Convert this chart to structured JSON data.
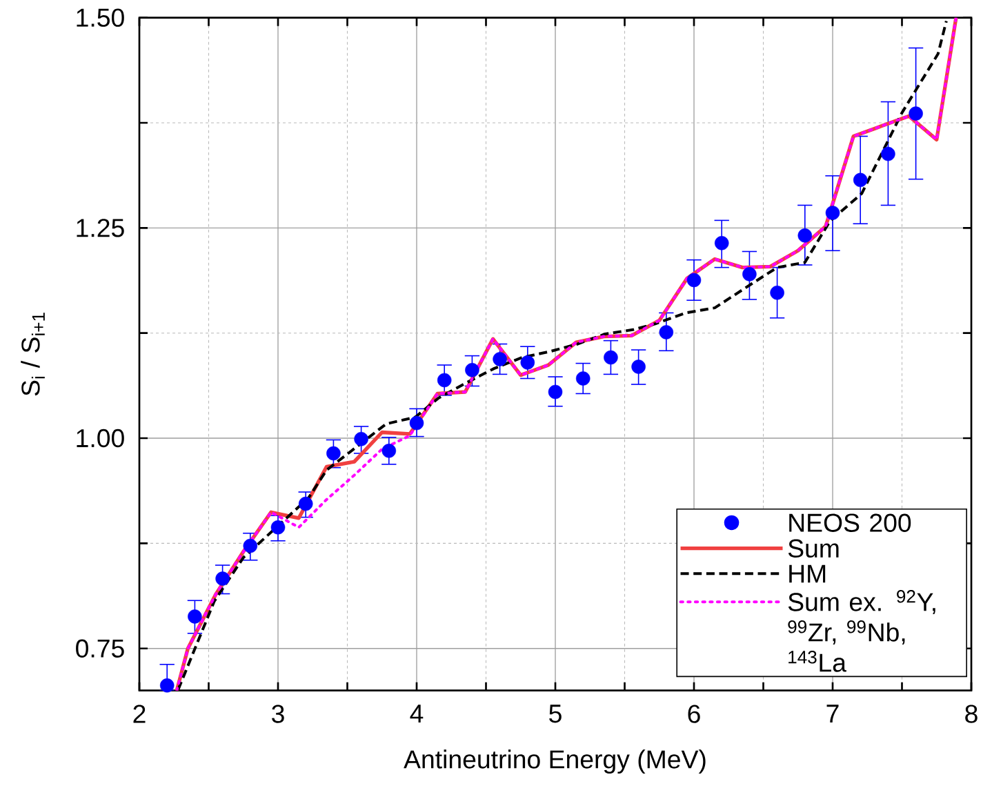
{
  "chart_data": {
    "type": "scatter",
    "xlabel": "Antineutrino Energy (MeV)",
    "ylabel": "S$_{i}$ / S$_{i+1}$",
    "xlim": [
      2,
      8
    ],
    "ylim": [
      0.7,
      1.5
    ],
    "xticks": [
      2,
      {
        "value": 2.5,
        "label": null
      },
      3,
      {
        "value": 3.5,
        "label": null
      },
      4,
      {
        "value": 4.5,
        "label": null
      },
      5,
      {
        "value": 5.5,
        "label": null
      },
      6,
      {
        "value": 6.5,
        "label": null
      },
      7,
      {
        "value": 7.5,
        "label": null
      },
      8
    ],
    "yticks": [
      0.75,
      {
        "value": 0.875,
        "label": null
      },
      {
        "value": 1,
        "label": "1.00"
      },
      {
        "value": 1.125,
        "label": null
      },
      1.25,
      {
        "value": 1.375,
        "label": null
      },
      {
        "value": 1.5,
        "label": "1.50"
      }
    ],
    "grid": true,
    "legend": "bottom right",
    "series": [
      {
        "name": "NEOS 200",
        "marker": "circle",
        "color": "#0000ff",
        "x": [
          2.2,
          2.4,
          2.6,
          2.8,
          3.0,
          3.2,
          3.4,
          3.6,
          3.8,
          4.0,
          4.2,
          4.4,
          4.6,
          4.8,
          5.0,
          5.2,
          5.4,
          5.6,
          5.8,
          6.0,
          6.2,
          6.4,
          6.6,
          6.8,
          7.0,
          7.2,
          7.4,
          7.6
        ],
        "values": [
          0.706,
          0.788,
          0.833,
          0.872,
          0.894,
          0.922,
          0.982,
          0.999,
          0.985,
          1.018,
          1.069,
          1.081,
          1.094,
          1.09,
          1.055,
          1.071,
          1.096,
          1.085,
          1.126,
          1.188,
          1.232,
          1.195,
          1.173,
          1.241,
          1.268,
          1.307,
          1.338,
          1.386
        ],
        "errors": [
          [
            0.7,
            0.731
          ],
          [
            0.768,
            0.807
          ],
          [
            0.815,
            0.849
          ],
          [
            0.855,
            0.887
          ],
          [
            0.878,
            0.908
          ],
          [
            0.906,
            0.936
          ],
          [
            0.965,
            0.998
          ],
          [
            0.982,
            1.014
          ],
          [
            0.969,
            1.001
          ],
          [
            1.002,
            1.035
          ],
          [
            1.051,
            1.087
          ],
          [
            1.062,
            1.098
          ],
          [
            1.076,
            1.112
          ],
          [
            1.071,
            1.109
          ],
          [
            1.038,
            1.073
          ],
          [
            1.053,
            1.089
          ],
          [
            1.076,
            1.116
          ],
          [
            1.064,
            1.105
          ],
          [
            1.104,
            1.149
          ],
          [
            1.164,
            1.212
          ],
          [
            1.203,
            1.259
          ],
          [
            1.165,
            1.222
          ],
          [
            1.143,
            1.203
          ],
          [
            1.206,
            1.277
          ],
          [
            1.223,
            1.312
          ],
          [
            1.255,
            1.359
          ],
          [
            1.277,
            1.4
          ],
          [
            1.308,
            1.464
          ]
        ]
      },
      {
        "name": "Sum",
        "type": "line",
        "line_style": "solid",
        "color": "#f04040",
        "x": [
          2.27,
          2.35,
          2.55,
          2.75,
          2.95,
          3.15,
          3.35,
          3.55,
          3.75,
          3.95,
          4.15,
          4.35,
          4.55,
          4.75,
          4.95,
          5.15,
          5.35,
          5.55,
          5.75,
          5.95,
          6.15,
          6.35,
          6.55,
          6.75,
          6.95,
          7.15,
          7.35,
          7.55,
          7.75,
          7.89
        ],
        "values": [
          0.7,
          0.75,
          0.814,
          0.865,
          0.912,
          0.905,
          0.966,
          0.972,
          1.007,
          1.005,
          1.053,
          1.055,
          1.118,
          1.075,
          1.087,
          1.114,
          1.121,
          1.122,
          1.14,
          1.19,
          1.213,
          1.203,
          1.204,
          1.223,
          1.252,
          1.359,
          1.371,
          1.383,
          1.355,
          1.5
        ]
      },
      {
        "name": "HM",
        "type": "line",
        "line_style": "dashed",
        "color": "#000000",
        "x": [
          2.28,
          2.54,
          2.75,
          3.22,
          3.35,
          3.78,
          3.99,
          4.16,
          4.36,
          4.56,
          4.76,
          4.96,
          5.16,
          5.36,
          5.56,
          5.72,
          5.94,
          6.15,
          6.42,
          6.6,
          6.8,
          6.98,
          7.21,
          7.5,
          7.76,
          7.82
        ],
        "values": [
          0.701,
          0.806,
          0.858,
          0.929,
          0.962,
          1.017,
          1.025,
          1.048,
          1.066,
          1.083,
          1.096,
          1.103,
          1.112,
          1.124,
          1.129,
          1.136,
          1.149,
          1.155,
          1.184,
          1.203,
          1.209,
          1.258,
          1.291,
          1.387,
          1.457,
          1.496
        ]
      },
      {
        "name": "Sum ex. $^{92}$Y, $^{99}$Zr, $^{99}$Nb, $^{143}$La",
        "type": "line",
        "line_style": "dotted",
        "color": "#ff00ff",
        "x": [
          2.27,
          2.35,
          2.55,
          2.75,
          2.95,
          3.15,
          3.35,
          3.55,
          3.75,
          3.95,
          4.15,
          4.35,
          4.55,
          4.75,
          4.95,
          5.15,
          5.35,
          5.55,
          5.75,
          5.95,
          6.15,
          6.35,
          6.55,
          6.75,
          6.95,
          7.15,
          7.35,
          7.55,
          7.75,
          7.89
        ],
        "values": [
          0.7,
          0.75,
          0.814,
          0.865,
          0.912,
          0.894,
          0.927,
          0.956,
          0.987,
          1.003,
          1.053,
          1.055,
          1.118,
          1.075,
          1.087,
          1.114,
          1.121,
          1.122,
          1.14,
          1.19,
          1.213,
          1.203,
          1.204,
          1.223,
          1.252,
          1.359,
          1.371,
          1.383,
          1.355,
          1.5
        ]
      }
    ]
  }
}
